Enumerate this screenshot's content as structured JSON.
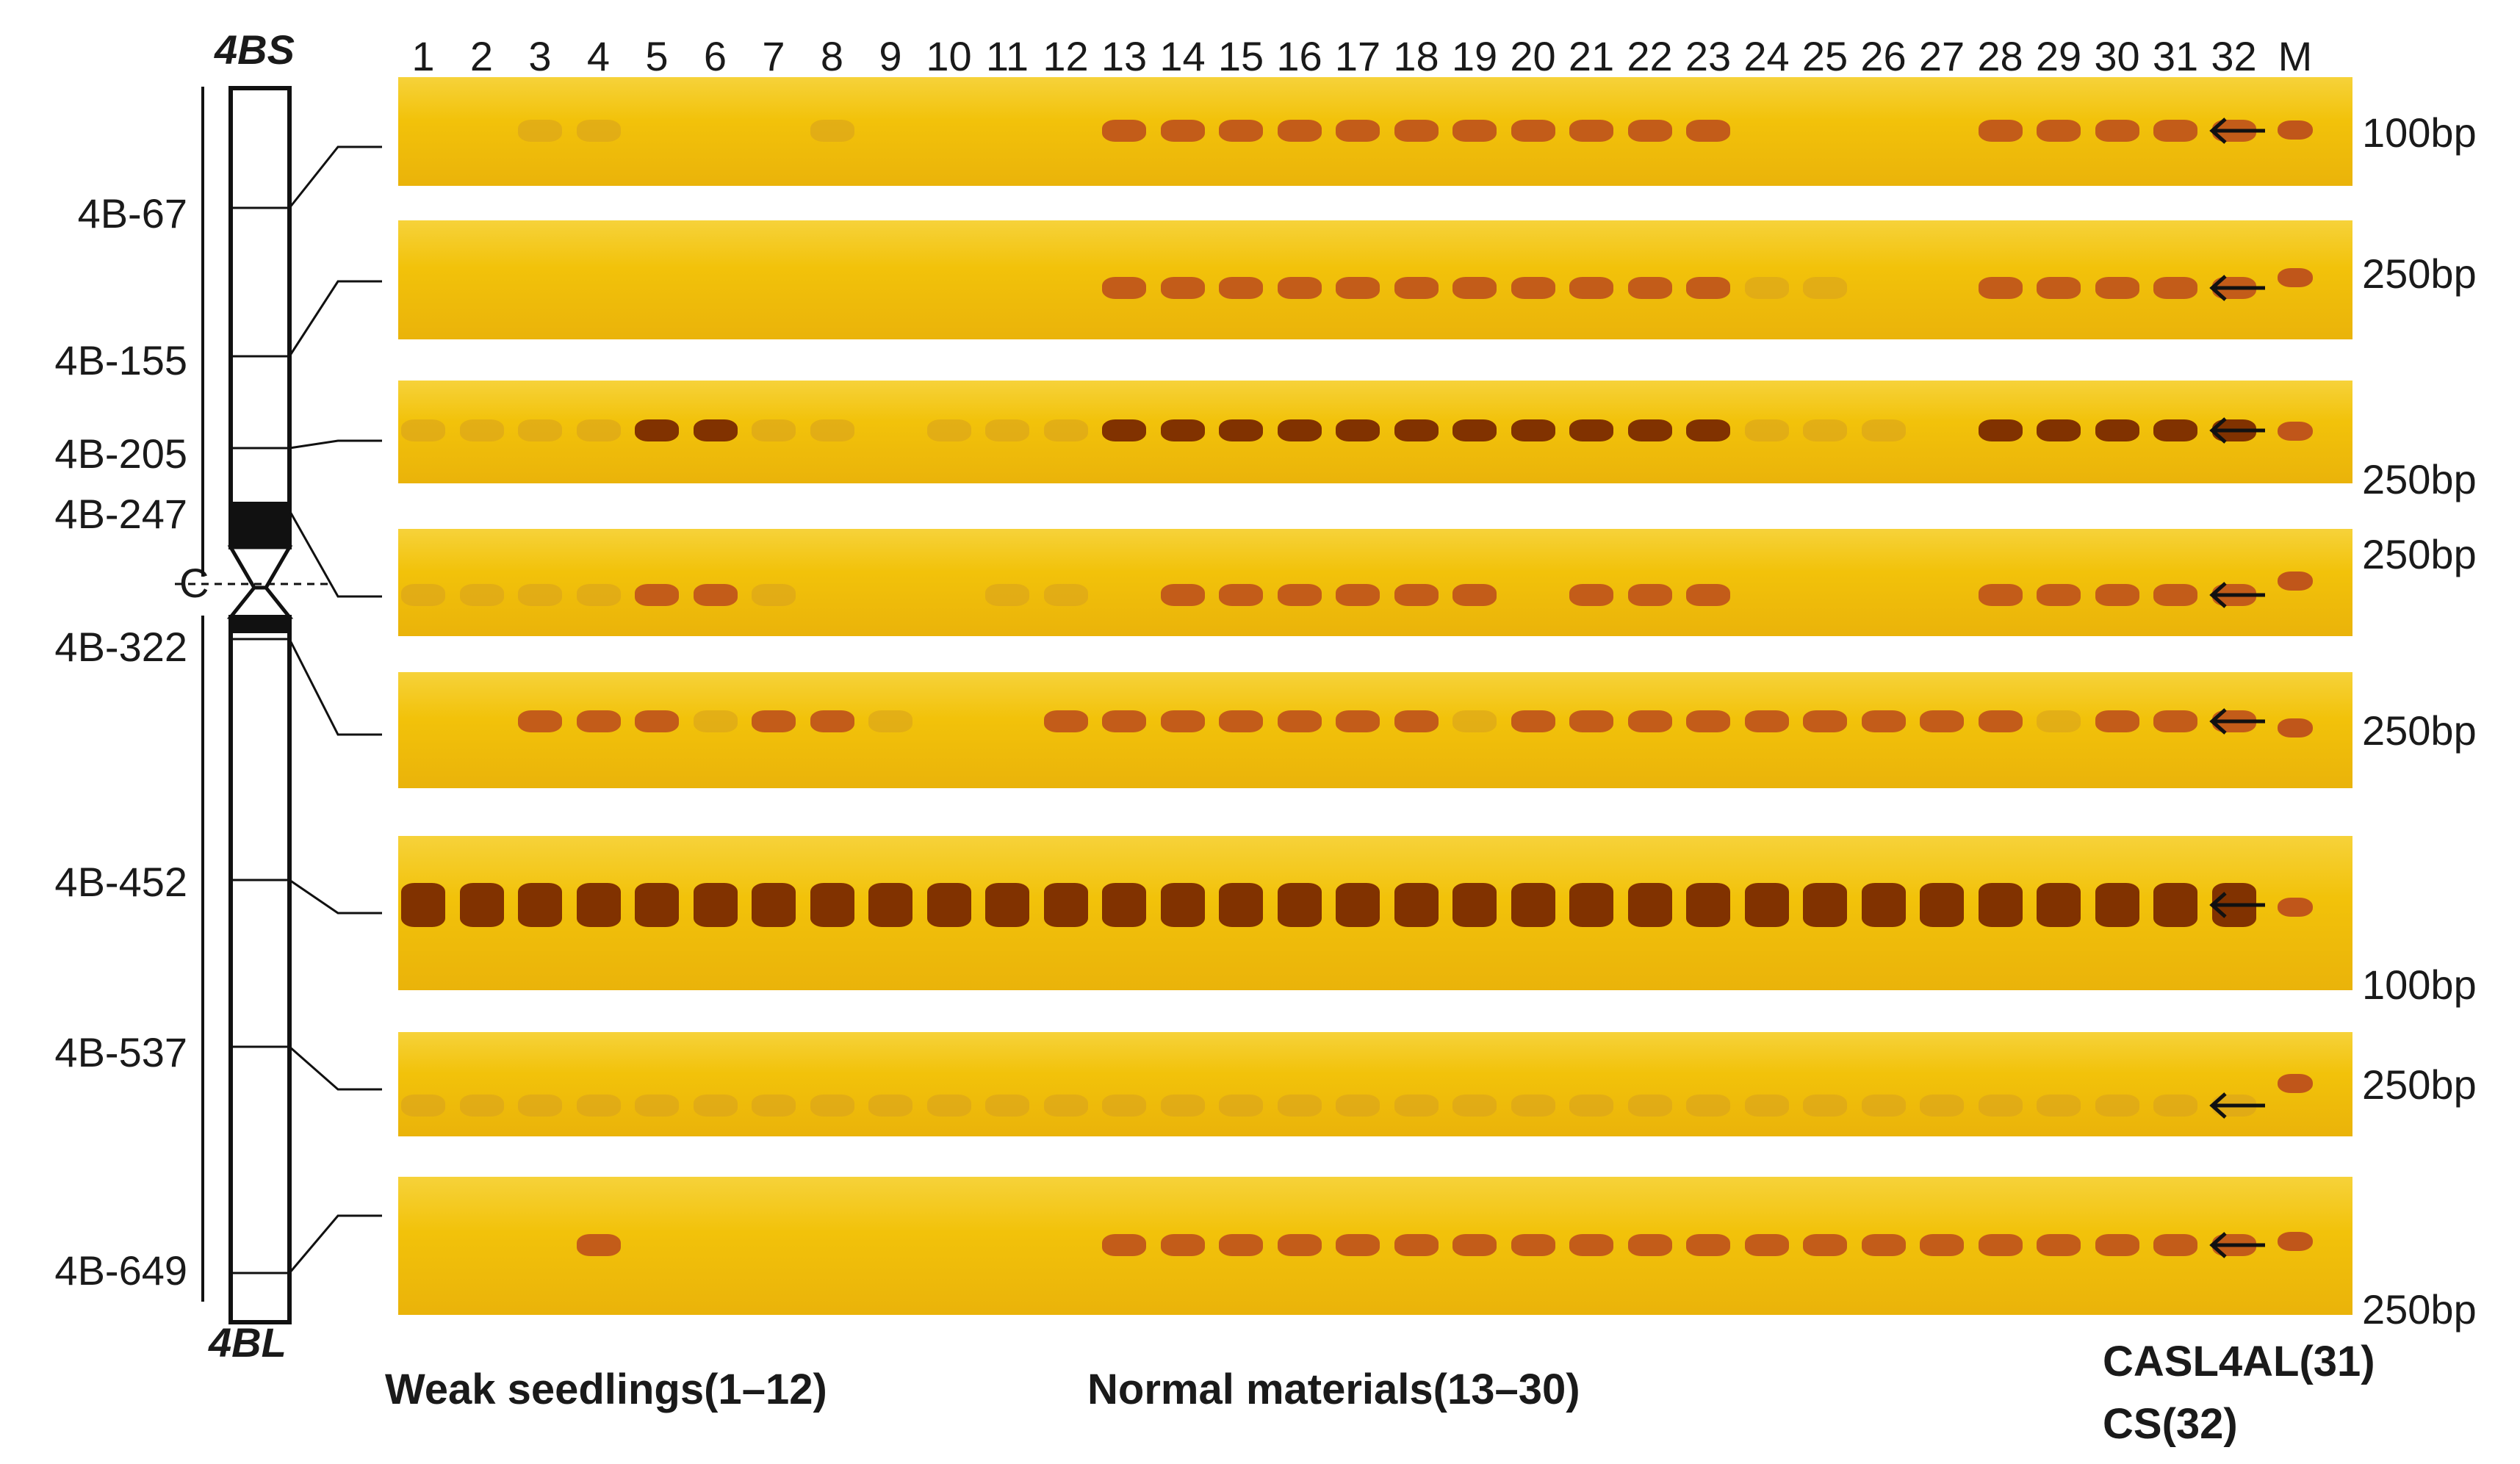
{
  "ideogram": {
    "short_arm_label": "4BS",
    "long_arm_label": "4BL",
    "centromere_label": "C",
    "markers": [
      "4B-67",
      "4B-155",
      "4B-205",
      "4B-247",
      "4B-322",
      "4B-452",
      "4B-537",
      "4B-649"
    ]
  },
  "lanes": [
    "1",
    "2",
    "3",
    "4",
    "5",
    "6",
    "7",
    "8",
    "9",
    "10",
    "11",
    "12",
    "13",
    "14",
    "15",
    "16",
    "17",
    "18",
    "19",
    "20",
    "21",
    "22",
    "23",
    "24",
    "25",
    "26",
    "27",
    "28",
    "29",
    "30",
    "31",
    "32",
    "M"
  ],
  "gels": [
    {
      "marker": "4B-67",
      "size_label": "100bp",
      "present_lanes": [
        13,
        14,
        15,
        16,
        17,
        18,
        19,
        20,
        21,
        22,
        23,
        28,
        29,
        30,
        31,
        32
      ],
      "weak_lanes": [
        3,
        4,
        8
      ]
    },
    {
      "marker": "4B-155",
      "size_label": "250bp",
      "present_lanes": [
        13,
        14,
        15,
        16,
        17,
        18,
        19,
        20,
        21,
        22,
        23,
        28,
        29,
        30,
        31,
        32
      ],
      "weak_lanes": [
        24,
        25
      ]
    },
    {
      "marker": "4B-205",
      "size_label": "250bp",
      "present_lanes": [
        5,
        6,
        13,
        14,
        15,
        16,
        17,
        18,
        19,
        20,
        21,
        22,
        23,
        28,
        29,
        30,
        31,
        32
      ],
      "weak_lanes": [
        1,
        2,
        3,
        4,
        7,
        8,
        10,
        11,
        12,
        24,
        25,
        26
      ]
    },
    {
      "marker": "4B-247",
      "size_label": "250bp",
      "present_lanes": [
        5,
        6,
        14,
        15,
        16,
        17,
        18,
        19,
        21,
        22,
        23,
        28,
        29,
        30,
        31,
        32
      ],
      "weak_lanes": [
        1,
        2,
        3,
        4,
        7,
        11,
        12
      ]
    },
    {
      "marker": "4B-322",
      "size_label": "250bp",
      "present_lanes": [
        3,
        4,
        5,
        7,
        8,
        12,
        13,
        14,
        15,
        16,
        17,
        18,
        20,
        21,
        22,
        23,
        24,
        25,
        26,
        27,
        28,
        30,
        31,
        32
      ],
      "weak_lanes": [
        6,
        9,
        19,
        29
      ]
    },
    {
      "marker": "4B-452",
      "size_label": "100bp",
      "present_lanes": [
        1,
        2,
        3,
        4,
        5,
        6,
        7,
        8,
        9,
        10,
        11,
        12,
        13,
        14,
        15,
        16,
        17,
        18,
        19,
        20,
        21,
        22,
        23,
        24,
        25,
        26,
        27,
        28,
        29,
        30,
        31,
        32
      ],
      "weak_lanes": []
    },
    {
      "marker": "4B-537",
      "size_label": "250bp",
      "present_lanes": [],
      "weak_lanes": [
        1,
        2,
        3,
        4,
        5,
        6,
        7,
        8,
        9,
        10,
        11,
        12,
        13,
        14,
        15,
        16,
        17,
        18,
        19,
        20,
        21,
        22,
        23,
        24,
        25,
        26,
        27,
        28,
        29,
        30,
        31,
        32
      ]
    },
    {
      "marker": "4B-649",
      "size_label": "250bp",
      "present_lanes": [
        4,
        13,
        14,
        15,
        16,
        17,
        18,
        19,
        20,
        21,
        22,
        23,
        24,
        25,
        26,
        27,
        28,
        29,
        30,
        31,
        32
      ],
      "weak_lanes": []
    }
  ],
  "groups": {
    "weak": "Weak seedlings(1–12)",
    "normal": "Normal materials(13–30)",
    "control1": "CASL4AL(31)",
    "control2": "CS(32)"
  },
  "colors": {
    "gel_bg": "#f2c20a",
    "band_dark": "#7a2a00",
    "band_mid": "#c0561a",
    "band_faint": "#d9a21c"
  }
}
